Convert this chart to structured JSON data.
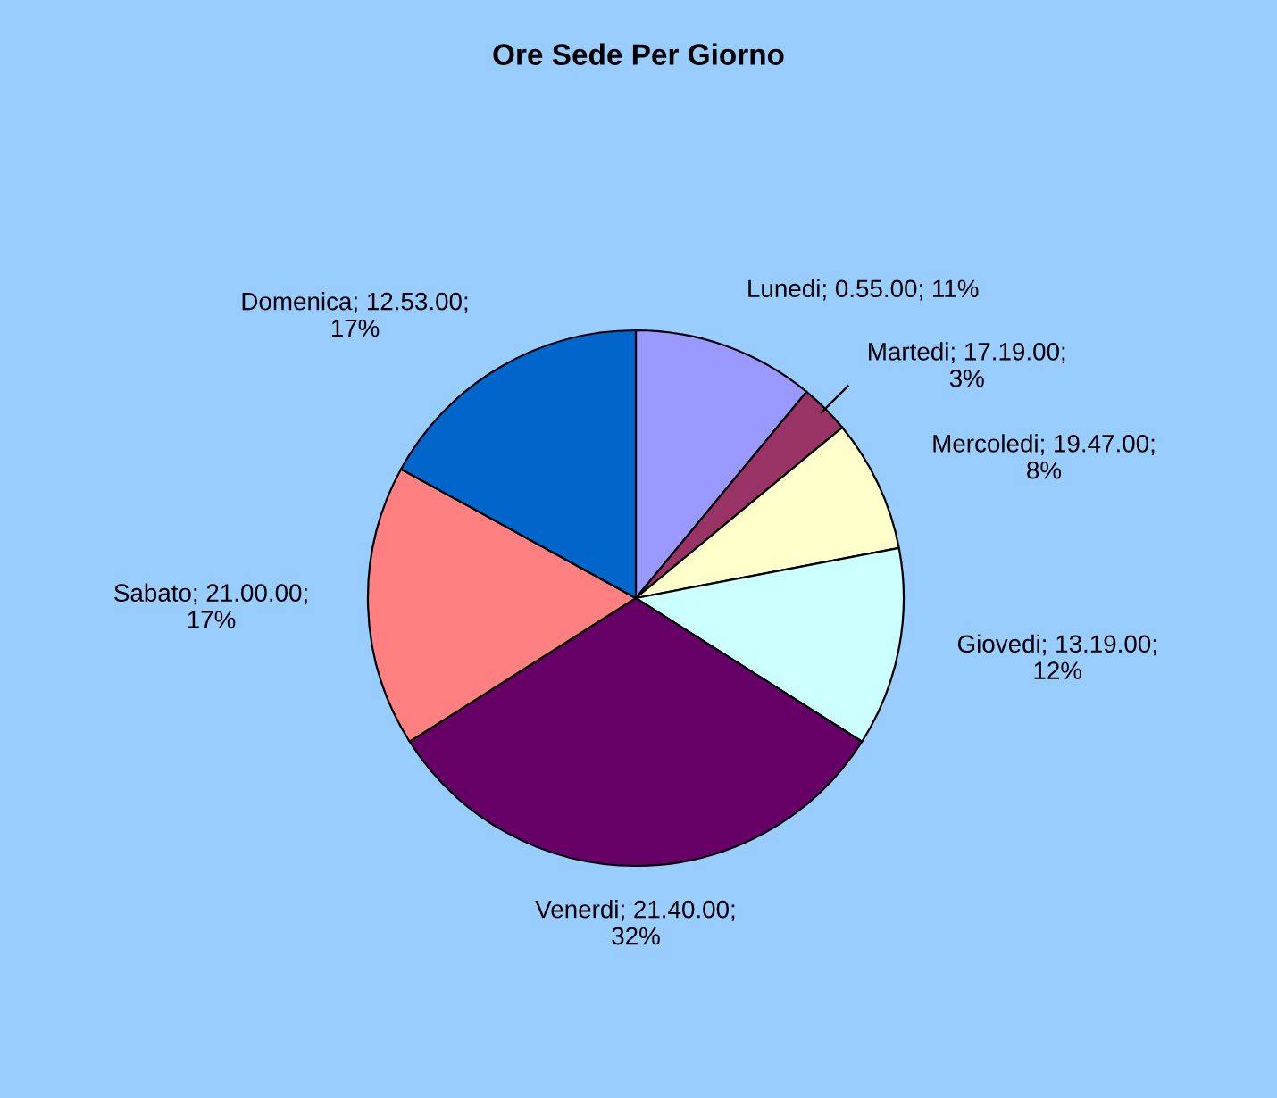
{
  "chart_data": {
    "type": "pie",
    "title": "Ore Sede Per Giorno",
    "categories": [
      "Lunedi",
      "Martedi",
      "Mercoledi",
      "Giovedi",
      "Venerdi",
      "Sabato",
      "Domenica"
    ],
    "values": [
      11,
      3,
      8,
      12,
      32,
      17,
      17
    ],
    "value_labels": [
      "0.55.00; 11%",
      "17.19.00;\n3%",
      "19.47.00;\n8%",
      "13.19.00;\n12%",
      "21.40.00;\n32%",
      "21.00.00;\n17%",
      "12.53.00;\n17%"
    ],
    "colors": [
      "#9999ff",
      "#993366",
      "#ffffcc",
      "#ccffff",
      "#660066",
      "#ff8080",
      "#0066cc"
    ],
    "legend": false
  }
}
